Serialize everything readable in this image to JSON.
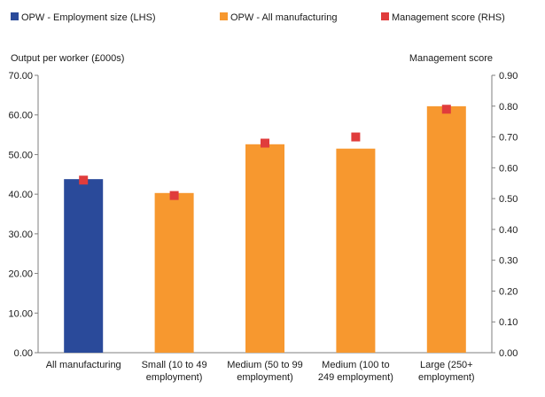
{
  "chart_data": {
    "type": "bar",
    "categories": [
      [
        "All manufacturing"
      ],
      [
        "Small (10 to 49",
        "employment)"
      ],
      [
        "Medium (50 to 99",
        "employment)"
      ],
      [
        "Medium (100 to",
        "249 employment)"
      ],
      [
        "Large (250+",
        "employment)"
      ]
    ],
    "series": [
      {
        "name": "OPW - Employment size (LHS)",
        "kind": "bar",
        "axis": "left",
        "color": "#2a4a9a",
        "values": [
          43.8,
          null,
          null,
          null,
          null
        ]
      },
      {
        "name": "OPW - All manufacturing",
        "kind": "bar",
        "axis": "left",
        "color": "#f7982f",
        "values": [
          null,
          40.3,
          52.6,
          51.5,
          62.2
        ]
      },
      {
        "name": "Management score (RHS)",
        "kind": "marker",
        "axis": "right",
        "color": "#e03c3c",
        "values": [
          0.56,
          0.51,
          0.68,
          0.7,
          0.79
        ]
      }
    ],
    "ylabel": "Output per worker (£000s)",
    "y2label": "Management score",
    "ylim": [
      0,
      70
    ],
    "y2lim": [
      0,
      0.9
    ],
    "yticks": [
      "0.00",
      "10.00",
      "20.00",
      "30.00",
      "40.00",
      "50.00",
      "60.00",
      "70.00"
    ],
    "y2ticks": [
      "0.00",
      "0.10",
      "0.20",
      "0.30",
      "0.40",
      "0.50",
      "0.60",
      "0.70",
      "0.80",
      "0.90"
    ],
    "grid": false,
    "legend_position": "top"
  }
}
